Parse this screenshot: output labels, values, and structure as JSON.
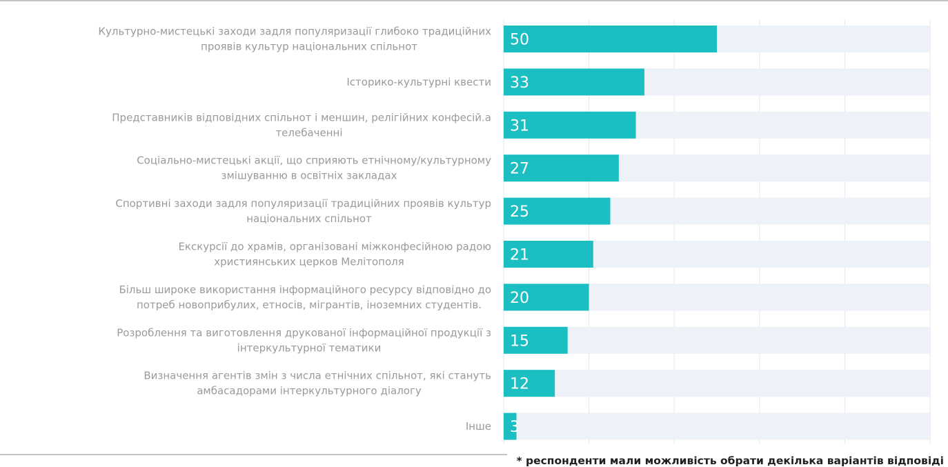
{
  "chart_data": {
    "type": "bar",
    "orientation": "horizontal",
    "categories": [
      [
        "Культурно-мистецькі заходи задля популяризації глибоко традиційних",
        "проявів культур національних спільнот"
      ],
      [
        "Історико-культурні квести"
      ],
      [
        "Представників відповідних спільнот і меншин, релігійних конфесій.а",
        "телебаченні"
      ],
      [
        "Соціально-мистецькі акції, що сприяють етнічному/культурному",
        "змішуванню в освітніх закладах"
      ],
      [
        "Спортивні заходи задля популяризації традиційних проявів культур",
        "національних спільнот"
      ],
      [
        "Екскурсії до храмів, організовані міжконфесійною радою",
        "християнських церков Мелітополя"
      ],
      [
        "Більш широке використання інформаційного ресурсу відповідно до",
        "потреб новоприбулих, етносів, мігрантів, іноземних студентів."
      ],
      [
        "Розроблення та виготовлення друкованої інформаційної продукції з",
        "інтеркультурної тематики"
      ],
      [
        "Визначення агентів змін з числа етнічних спільнот, які стануть",
        "амбасадорами інтеркультурного діалогу"
      ],
      [
        "Інше"
      ]
    ],
    "values": [
      50,
      33,
      31,
      27,
      25,
      21,
      20,
      15,
      12,
      3
    ],
    "xlim": [
      0,
      100
    ],
    "grid": true,
    "legend": "none",
    "bar_color": "#1bbfc2",
    "track_color": "#edf1f8",
    "label_color": "#9a9a9a",
    "value_label_color": "#ffffff",
    "footnote": "* респонденти мали можливість обрати декілька варіантів відповіді"
  }
}
